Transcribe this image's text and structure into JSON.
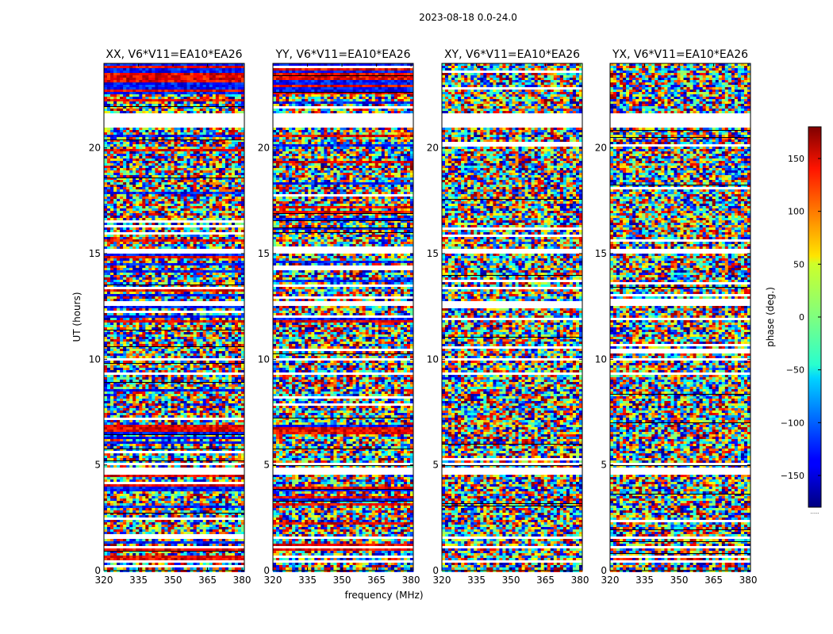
{
  "figure": {
    "suptitle": "2023-08-18 0.0-24.0",
    "xlabel": "frequency (MHz)",
    "ylabel": "UT (hours)",
    "colorbar_label": "phase (deg.)",
    "colorbar_footer": "......"
  },
  "chart_data": {
    "type": "heatmap",
    "colormap": "jet",
    "colorbar": {
      "range": [
        -180,
        180
      ],
      "ticks": [
        -150,
        -100,
        -50,
        0,
        50,
        100,
        150
      ],
      "tick_labels": [
        "−150",
        "−100",
        "−50",
        "0",
        "50",
        "100",
        "150"
      ]
    },
    "x_axis": {
      "range": [
        320,
        381
      ],
      "ticks": [
        320,
        335,
        350,
        365,
        380
      ],
      "tick_labels": [
        "320",
        "335",
        "350",
        "365",
        "380"
      ]
    },
    "y_axis": {
      "range": [
        0,
        24
      ],
      "ticks": [
        0,
        5,
        10,
        15,
        20
      ],
      "tick_labels": [
        "0",
        "5",
        "10",
        "15",
        "20"
      ]
    },
    "panels": [
      {
        "title": "XX, V6*V11=EA10*EA26",
        "coherent": true
      },
      {
        "title": "YY, V6*V11=EA10*EA26",
        "coherent": true
      },
      {
        "title": "XY, V6*V11=EA10*EA26",
        "coherent": false
      },
      {
        "title": "YX, V6*V11=EA10*EA26",
        "coherent": false
      }
    ],
    "gaps_hours": [
      [
        21.0,
        21.6
      ],
      [
        15.0,
        15.2
      ],
      [
        12.5,
        12.7
      ],
      [
        9.9,
        10.0
      ],
      [
        9.3,
        9.4
      ],
      [
        5.0,
        5.1
      ],
      [
        4.5,
        4.9
      ],
      [
        1.5,
        1.6
      ],
      [
        1.1,
        1.2
      ],
      [
        0.4,
        0.5
      ]
    ]
  }
}
